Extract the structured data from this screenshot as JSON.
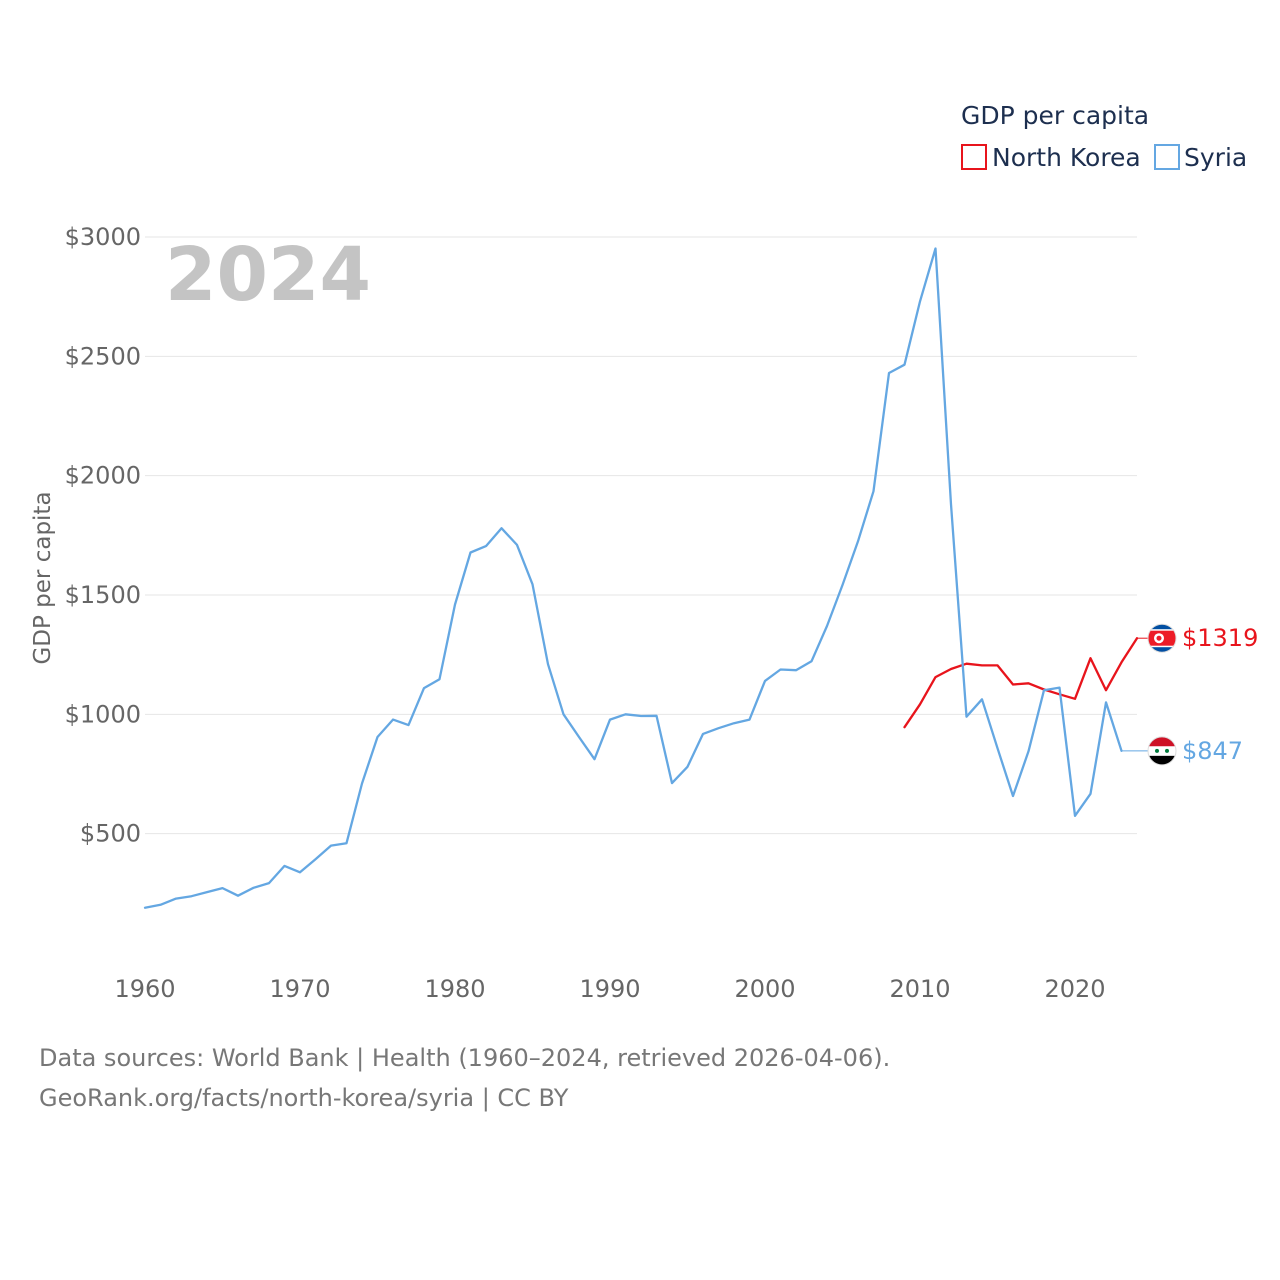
{
  "chart_data": {
    "type": "line",
    "year_watermark": "2024",
    "legend_title": "GDP per capita",
    "ylabel": "GDP per capita",
    "xlabel": "",
    "xlim": [
      1960,
      2024
    ],
    "ylim": [
      0,
      3000
    ],
    "y_ticks": [
      {
        "value": 3000,
        "label": "$3000"
      },
      {
        "value": 2500,
        "label": "$2500"
      },
      {
        "value": 2000,
        "label": "$2000"
      },
      {
        "value": 1500,
        "label": "$1500"
      },
      {
        "value": 1000,
        "label": "$1000"
      },
      {
        "value": 500,
        "label": "$500"
      }
    ],
    "x_ticks": [
      {
        "value": 1960,
        "label": "1960"
      },
      {
        "value": 1970,
        "label": "1970"
      },
      {
        "value": 1980,
        "label": "1980"
      },
      {
        "value": 1990,
        "label": "1990"
      },
      {
        "value": 2000,
        "label": "2000"
      },
      {
        "value": 2010,
        "label": "2010"
      },
      {
        "value": 2020,
        "label": "2020"
      }
    ],
    "series": [
      {
        "name": "North Korea",
        "color": "#e8141c",
        "end_label": "$1319",
        "flag": "north-korea-flag",
        "x": [
          2009,
          2010,
          2011,
          2012,
          2013,
          2014,
          2015,
          2016,
          2017,
          2018,
          2019,
          2020,
          2021,
          2022,
          2023,
          2024
        ],
        "y": [
          946,
          1042,
          1156,
          1190,
          1212,
          1205,
          1205,
          1125,
          1130,
          1104,
          1084,
          1065,
          1235,
          1101,
          1218,
          1319
        ]
      },
      {
        "name": "Syria",
        "color": "#64a7e2",
        "end_label": "$847",
        "flag": "syria-flag",
        "x": [
          1960,
          1961,
          1962,
          1963,
          1964,
          1965,
          1966,
          1967,
          1968,
          1969,
          1970,
          1971,
          1972,
          1973,
          1974,
          1975,
          1976,
          1977,
          1978,
          1979,
          1980,
          1981,
          1982,
          1983,
          1984,
          1985,
          1986,
          1987,
          1988,
          1989,
          1990,
          1991,
          1992,
          1993,
          1994,
          1995,
          1996,
          1997,
          1998,
          1999,
          2000,
          2001,
          2002,
          2003,
          2004,
          2005,
          2006,
          2007,
          2008,
          2009,
          2010,
          2011,
          2012,
          2013,
          2014,
          2015,
          2016,
          2017,
          2018,
          2019,
          2020,
          2021,
          2022,
          2023
        ],
        "y": [
          190,
          202,
          228,
          238,
          255,
          272,
          240,
          273,
          293,
          365,
          338,
          393,
          450,
          460,
          710,
          905,
          978,
          955,
          1110,
          1147,
          1460,
          1678,
          1705,
          1780,
          1710,
          1545,
          1210,
          1000,
          905,
          812,
          978,
          1000,
          993,
          994,
          712,
          780,
          918,
          942,
          963,
          978,
          1140,
          1188,
          1185,
          1222,
          1370,
          1542,
          1725,
          1935,
          2430,
          2465,
          2730,
          2952,
          1880,
          990,
          1063,
          858,
          658,
          845,
          1101,
          1112,
          575,
          667,
          1050,
          847
        ]
      }
    ]
  },
  "footer": {
    "line1": "Data sources: World Bank | Health (1960–2024, retrieved 2026-04-06).",
    "line2": "GeoRank.org/facts/north-korea/syria | CC BY"
  }
}
